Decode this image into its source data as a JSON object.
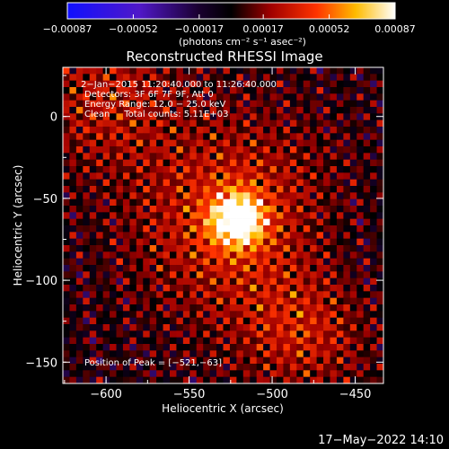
{
  "chart_data": {
    "type": "heatmap",
    "title": "Reconstructed RHESSI Image",
    "xlabel": "Heliocentric X (arcsec)",
    "ylabel": "Heliocentric Y (arcsec)",
    "xlim": [
      -626,
      -433
    ],
    "ylim": [
      -163,
      30
    ],
    "xticks": [
      -600,
      -550,
      -500,
      -450
    ],
    "yticks": [
      0,
      -50,
      -100,
      -150
    ],
    "xtick_labels": [
      "−600",
      "−550",
      "−500",
      "−450"
    ],
    "ytick_labels": [
      "0",
      "−50",
      "−100",
      "−150"
    ],
    "colorbar": {
      "range": [
        -0.00087,
        0.00087
      ],
      "tick_values": [
        -0.00087,
        -0.00052,
        -0.00017,
        0.00017,
        0.00052,
        0.00087
      ],
      "tick_labels": [
        "−0.00087",
        "−0.00052",
        "−0.00017",
        "0.00017",
        "0.00052",
        "0.00087"
      ],
      "unit_label": "(photons cm⁻² s⁻¹ asec⁻²)"
    },
    "annotations": [
      " 2−Jan−2015 11:20:40.000 to 11:26:40.000",
      "Detectors: 3F 6F 7F 9F, Att 0",
      "Energy Range: 12.0 − 25.0 keV",
      "Clean     Total counts: 5.11E+03"
    ],
    "peak_label": "Position of Peak = [−521,−63]",
    "peak": [
      -521,
      -63
    ],
    "grid": false,
    "colormap": "rhessi-thermal"
  },
  "footer": {
    "timestamp": "17−May−2022 14:10"
  }
}
